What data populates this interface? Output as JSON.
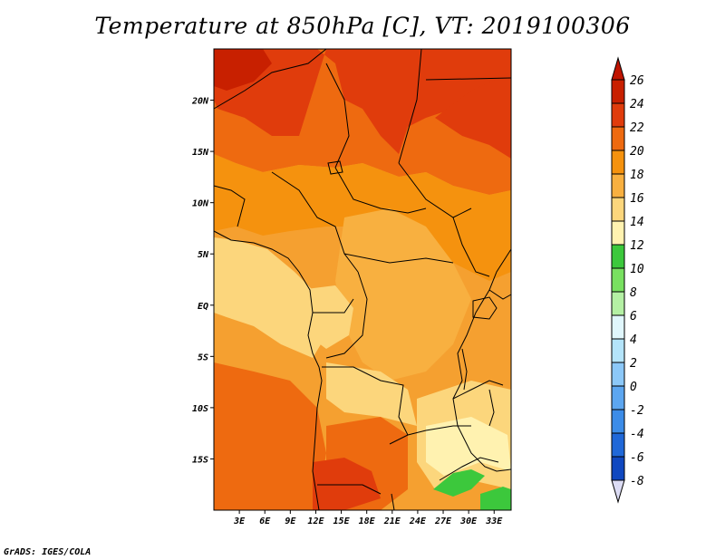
{
  "title": "Temperature at 850hPa [C], VT: 2019100306",
  "credit": "GrADS: IGES/COLA",
  "map": {
    "lon_range": [
      0,
      35
    ],
    "lat_range": [
      -20,
      25
    ],
    "x_ticks": [
      {
        "lon": 3,
        "label": "3E"
      },
      {
        "lon": 6,
        "label": "6E"
      },
      {
        "lon": 9,
        "label": "9E"
      },
      {
        "lon": 12,
        "label": "12E"
      },
      {
        "lon": 15,
        "label": "15E"
      },
      {
        "lon": 18,
        "label": "18E"
      },
      {
        "lon": 21,
        "label": "21E"
      },
      {
        "lon": 24,
        "label": "24E"
      },
      {
        "lon": 27,
        "label": "27E"
      },
      {
        "lon": 30,
        "label": "30E"
      },
      {
        "lon": 33,
        "label": "33E"
      }
    ],
    "y_ticks": [
      {
        "lat": 20,
        "label": "20N"
      },
      {
        "lat": 15,
        "label": "15N"
      },
      {
        "lat": 10,
        "label": "10N"
      },
      {
        "lat": 5,
        "label": "5N"
      },
      {
        "lat": 0,
        "label": "EQ"
      },
      {
        "lat": -5,
        "label": "5S"
      },
      {
        "lat": -10,
        "label": "10S"
      },
      {
        "lat": -15,
        "label": "15S"
      }
    ]
  },
  "colorbar": {
    "levels": [
      {
        "label": "26",
        "color": "#c82000"
      },
      {
        "label": "24",
        "color": "#e03c0c"
      },
      {
        "label": "22",
        "color": "#ee6a10"
      },
      {
        "label": "20",
        "color": "#f5920e"
      },
      {
        "label": "18",
        "color": "#f8b040"
      },
      {
        "label": "16",
        "color": "#fcd67c"
      },
      {
        "label": "14",
        "color": "#fff2b0"
      },
      {
        "label": "12",
        "color": "#3cc83c"
      },
      {
        "label": "10",
        "color": "#78e060"
      },
      {
        "label": "8",
        "color": "#b4f0a4"
      },
      {
        "label": "6",
        "color": "#e0f6fc"
      },
      {
        "label": "4",
        "color": "#b4e4fa"
      },
      {
        "label": "2",
        "color": "#8cc8f8"
      },
      {
        "label": "0",
        "color": "#5ca6f0"
      },
      {
        "label": "-2",
        "color": "#3c8ce8"
      },
      {
        "label": "-4",
        "color": "#2068d8"
      },
      {
        "label": "-6",
        "color": "#1048c0"
      },
      {
        "label": "-8",
        "color": "#0a2a9c"
      }
    ],
    "top_color": "#c01400",
    "bottom_color": "#dcdcf4"
  }
}
